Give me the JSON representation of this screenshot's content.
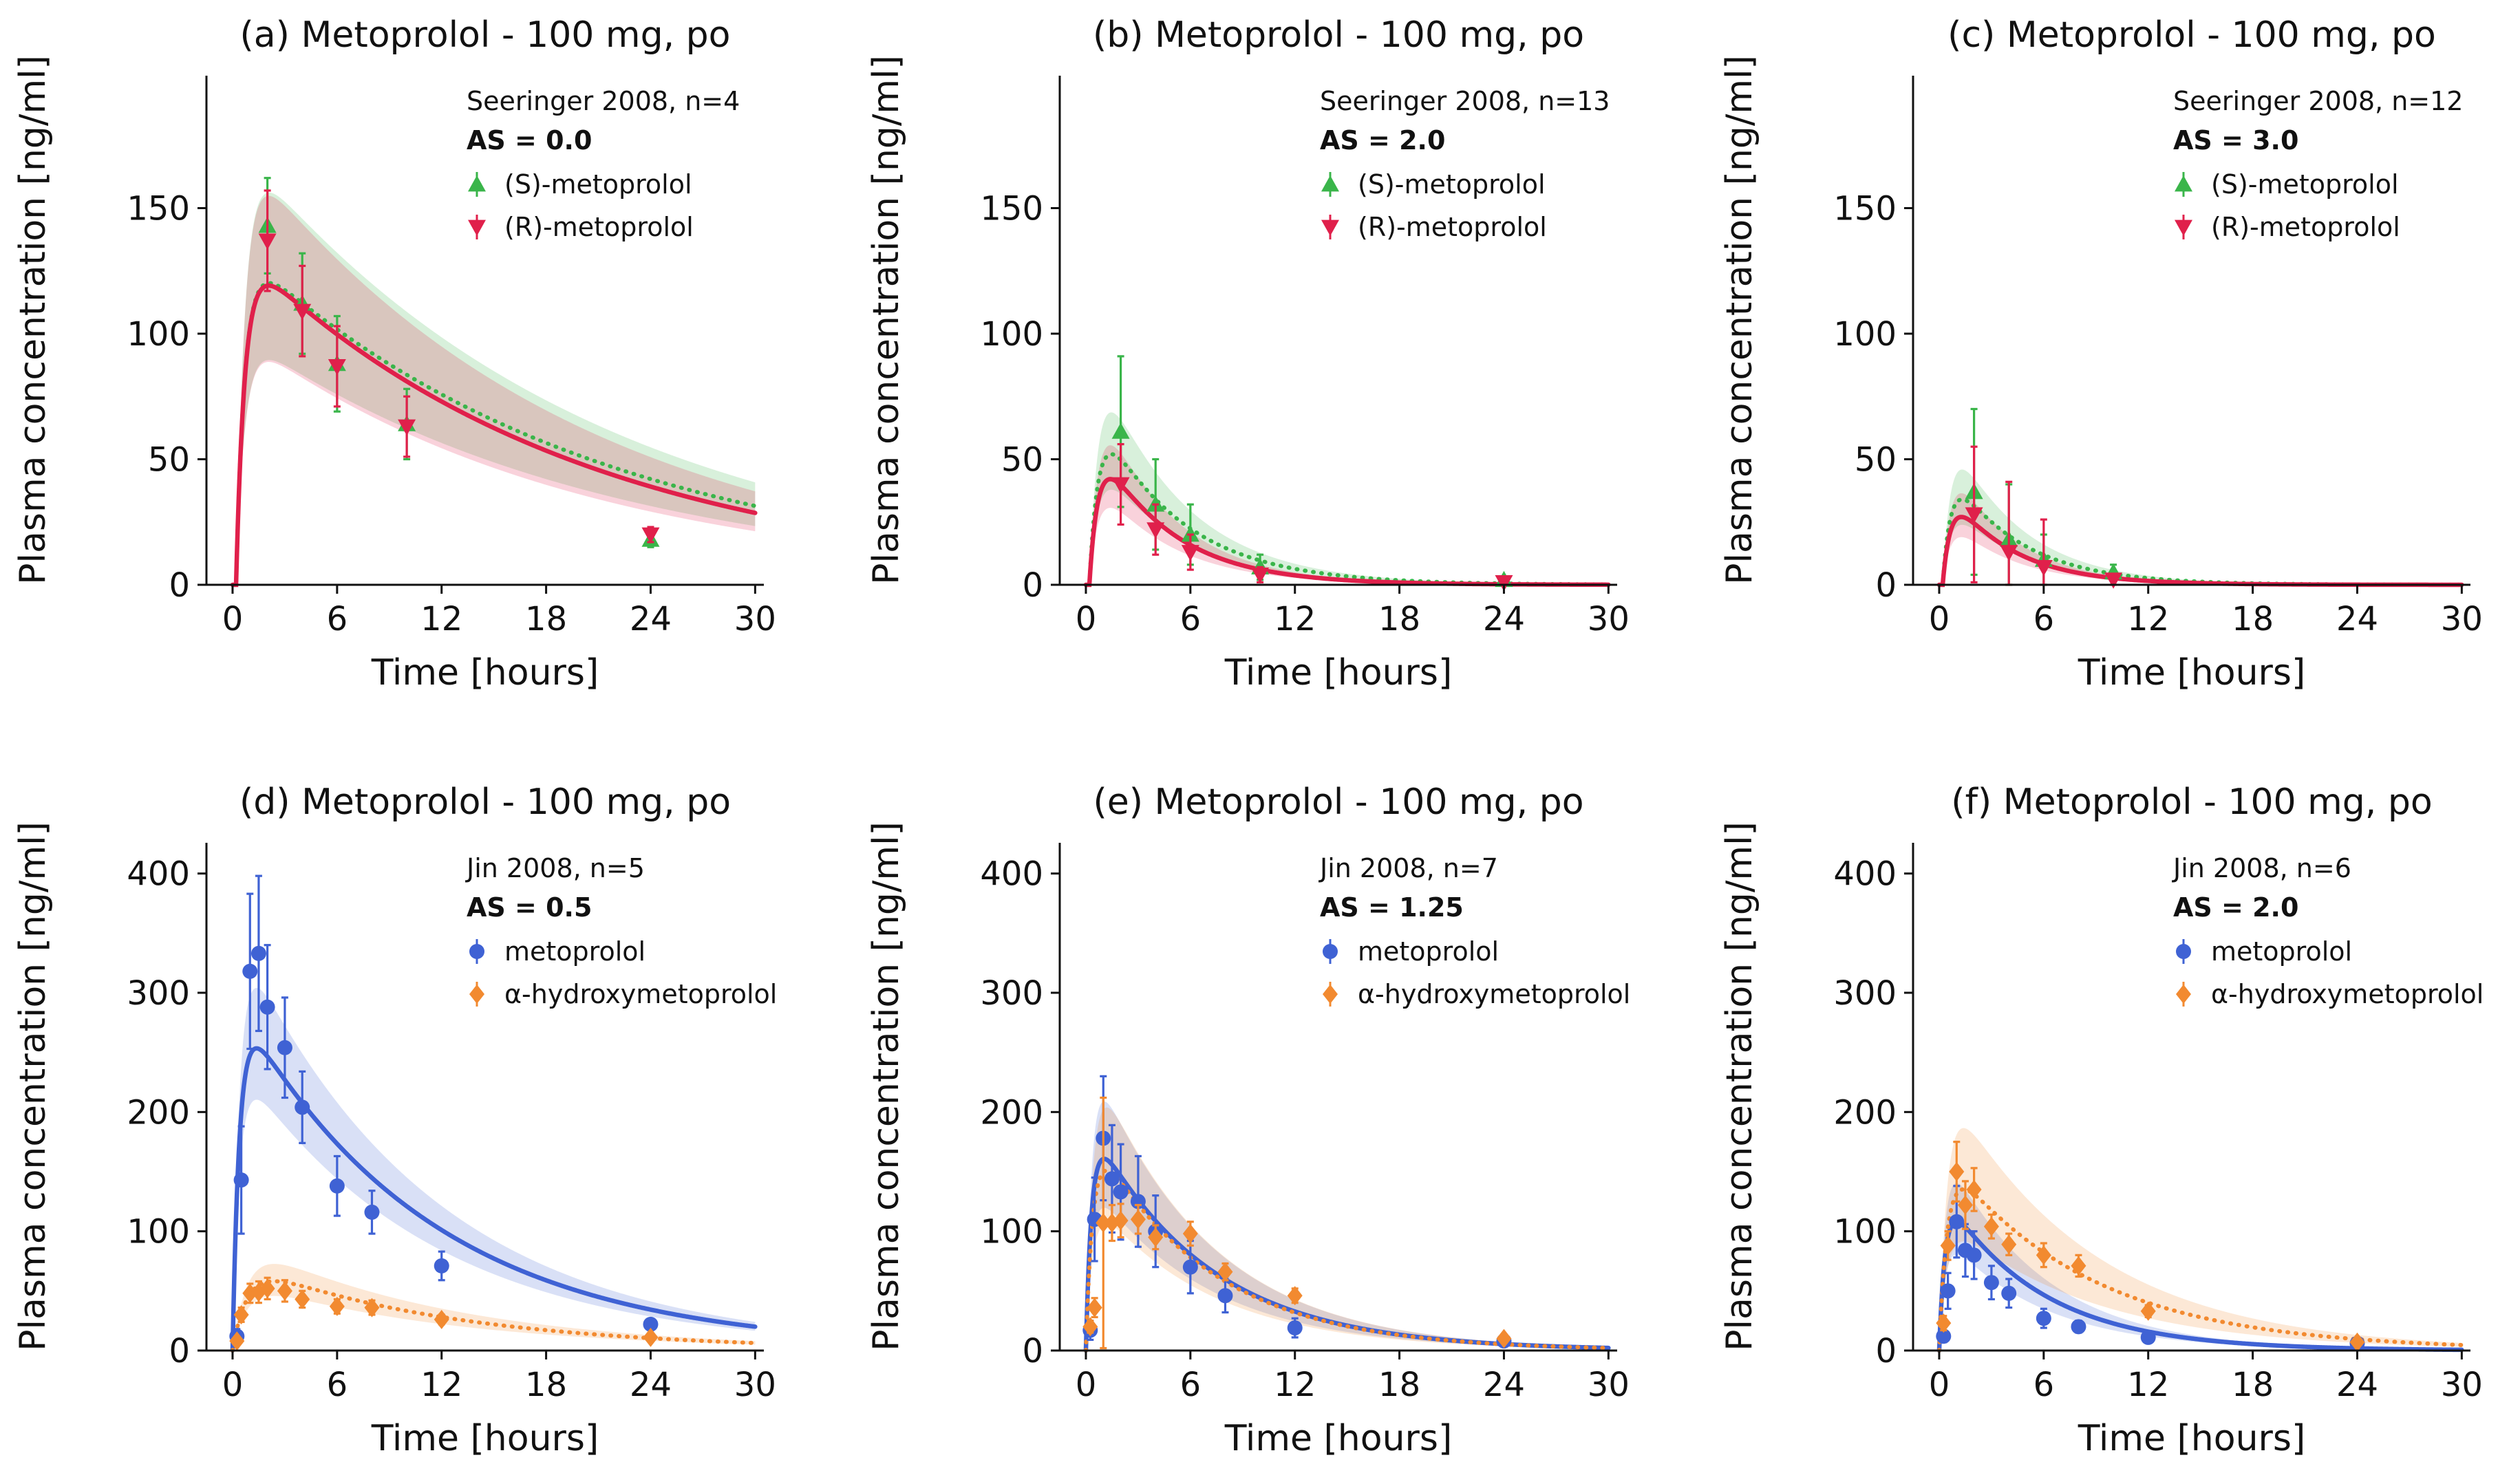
{
  "figure": {
    "shared_ylabel": "Plasma concentration [ng/ml]",
    "shared_xlabel": "Time [hours]"
  },
  "colors": {
    "S": "#3ab54a",
    "R": "#e0204b",
    "parent": "#3f62d4",
    "hydroxy": "#f28a30"
  },
  "chart_data": [
    {
      "type": "line",
      "title": "(a) Metoprolol - 100 mg, po",
      "xlabel": "Time [hours]",
      "ylabel": "Plasma concentration [ng/ml]",
      "xlim": [
        -1.5,
        30.5
      ],
      "ylim": [
        0,
        200
      ],
      "xticks": [
        0,
        6,
        12,
        18,
        24,
        30
      ],
      "yticks": [
        0,
        50,
        100,
        150
      ],
      "legend": {
        "study": "Seeringer  2008, n=4",
        "as_label": "AS = 0.0",
        "entries": [
          "(S)-metoprolol",
          "(R)-metoprolol"
        ],
        "colors": [
          "S",
          "R"
        ],
        "markers": [
          "triangle-up",
          "triangle-down"
        ]
      },
      "model": [
        {
          "name": "(S)-metoprolol",
          "color": "S",
          "dashed": true,
          "peak": 118,
          "tmax": 1.6,
          "tlag": 0.2,
          "ke": 0.049,
          "ka": 2.0,
          "band": 0.3
        },
        {
          "name": "(R)-metoprolol",
          "color": "R",
          "dashed": false,
          "peak": 116,
          "tmax": 1.5,
          "tlag": 0.2,
          "ke": 0.052,
          "ka": 2.0,
          "band": 0.3
        }
      ],
      "series": [
        {
          "name": "(S)-metoprolol",
          "color": "S",
          "marker": "triangle-up",
          "points": [
            [
              2,
              143,
              19
            ],
            [
              4,
              112,
              20
            ],
            [
              6,
              88,
              19
            ],
            [
              10,
              64,
              14
            ],
            [
              24,
              18,
              3
            ]
          ]
        },
        {
          "name": "(R)-metoprolol",
          "color": "R",
          "marker": "triangle-down",
          "points": [
            [
              2,
              137,
              20
            ],
            [
              4,
              109,
              18
            ],
            [
              6,
              87,
              16
            ],
            [
              10,
              63,
              12
            ],
            [
              24,
              20,
              3
            ]
          ]
        }
      ]
    },
    {
      "type": "line",
      "title": "(b) Metoprolol - 100 mg, po",
      "xlabel": "Time [hours]",
      "ylabel": "Plasma concentration [ng/ml]",
      "xlim": [
        -1.5,
        30.5
      ],
      "ylim": [
        0,
        200
      ],
      "xticks": [
        0,
        6,
        12,
        18,
        24,
        30
      ],
      "yticks": [
        0,
        50,
        100,
        150
      ],
      "legend": {
        "study": "Seeringer  2008, n=13",
        "as_label": "AS = 2.0",
        "entries": [
          "(S)-metoprolol",
          "(R)-metoprolol"
        ],
        "colors": [
          "S",
          "R"
        ],
        "markers": [
          "triangle-up",
          "triangle-down"
        ]
      },
      "model": [
        {
          "name": "(S)-metoprolol",
          "color": "S",
          "dashed": true,
          "peak": 52,
          "tmax": 1.5,
          "tlag": 0.2,
          "ke": 0.21,
          "ka": 2.0,
          "band": 0.32
        },
        {
          "name": "(R)-metoprolol",
          "color": "R",
          "dashed": false,
          "peak": 42,
          "tmax": 1.5,
          "tlag": 0.2,
          "ke": 0.24,
          "ka": 2.0,
          "band": 0.32
        }
      ],
      "series": [
        {
          "name": "(S)-metoprolol",
          "color": "S",
          "marker": "triangle-up",
          "points": [
            [
              2,
              61,
              30
            ],
            [
              4,
              32,
              18
            ],
            [
              6,
              20,
              12
            ],
            [
              10,
              7,
              5
            ],
            [
              24,
              2,
              1
            ]
          ]
        },
        {
          "name": "(R)-metoprolol",
          "color": "R",
          "marker": "triangle-down",
          "points": [
            [
              2,
              40,
              16
            ],
            [
              4,
              22,
              10
            ],
            [
              6,
              13,
              7
            ],
            [
              10,
              4,
              3
            ],
            [
              24,
              1,
              1
            ]
          ]
        }
      ]
    },
    {
      "type": "line",
      "title": "(c) Metoprolol - 100 mg, po",
      "xlabel": "Time [hours]",
      "ylabel": "Plasma concentration [ng/ml]",
      "xlim": [
        -1.5,
        30.5
      ],
      "ylim": [
        0,
        200
      ],
      "xticks": [
        0,
        6,
        12,
        18,
        24,
        30
      ],
      "yticks": [
        0,
        50,
        100,
        150
      ],
      "legend": {
        "study": "Seeringer  2008, n=12",
        "as_label": "AS = 3.0",
        "entries": [
          "(S)-metoprolol",
          "(R)-metoprolol"
        ],
        "colors": [
          "S",
          "R"
        ],
        "markers": [
          "triangle-up",
          "triangle-down"
        ]
      },
      "model": [
        {
          "name": "(S)-metoprolol",
          "color": "S",
          "dashed": true,
          "peak": 34,
          "tmax": 1.3,
          "tlag": 0.2,
          "ke": 0.25,
          "ka": 2.2,
          "band": 0.35
        },
        {
          "name": "(R)-metoprolol",
          "color": "R",
          "dashed": false,
          "peak": 27,
          "tmax": 1.3,
          "tlag": 0.2,
          "ke": 0.28,
          "ka": 2.2,
          "band": 0.35
        }
      ],
      "series": [
        {
          "name": "(S)-metoprolol",
          "color": "S",
          "marker": "triangle-up",
          "points": [
            [
              2,
              37,
              33
            ],
            [
              4,
              18,
              22
            ],
            [
              6,
              10,
              10
            ],
            [
              10,
              5,
              3
            ]
          ]
        },
        {
          "name": "(R)-metoprolol",
          "color": "R",
          "marker": "triangle-down",
          "points": [
            [
              2,
              28,
              27
            ],
            [
              4,
              13,
              28
            ],
            [
              6,
              7,
              19
            ],
            [
              10,
              2,
              2
            ]
          ]
        }
      ]
    },
    {
      "type": "line",
      "title": "(d) Metoprolol - 100 mg, po",
      "xlabel": "Time [hours]",
      "ylabel": "Plasma concentration [ng/ml]",
      "xlim": [
        -1.5,
        30.5
      ],
      "ylim": [
        0,
        420
      ],
      "xticks": [
        0,
        6,
        12,
        18,
        24,
        30
      ],
      "yticks": [
        0,
        100,
        200,
        300,
        400
      ],
      "legend": {
        "study": "Jin  2008, n=5",
        "as_label": "AS = 0.5",
        "entries": [
          "metoprolol",
          "α-hydroxymetoprolol"
        ],
        "colors": [
          "parent",
          "hydroxy"
        ],
        "markers": [
          "circle",
          "diamond"
        ]
      },
      "model": [
        {
          "name": "metoprolol",
          "color": "parent",
          "dashed": false,
          "peak": 253,
          "tmax": 1.5,
          "tlag": 0.0,
          "ke": 0.09,
          "ka": 2.5,
          "band": 0.2
        },
        {
          "name": "α-hydroxymetoprolol",
          "color": "hydroxy",
          "dashed": true,
          "peak": 58,
          "tmax": 2.6,
          "tlag": 0.0,
          "ke": 0.083,
          "ka": 1.2,
          "band": 0.25
        }
      ],
      "series": [
        {
          "name": "metoprolol",
          "color": "parent",
          "marker": "circle",
          "points": [
            [
              0.25,
              12,
              6
            ],
            [
              0.5,
              143,
              45
            ],
            [
              1,
              318,
              65
            ],
            [
              1.5,
              333,
              65
            ],
            [
              2,
              288,
              52
            ],
            [
              3,
              254,
              42
            ],
            [
              4,
              204,
              30
            ],
            [
              6,
              138,
              25
            ],
            [
              8,
              116,
              18
            ],
            [
              12,
              71,
              12
            ],
            [
              24,
              22,
              4
            ]
          ]
        },
        {
          "name": "α-hydroxymetoprolol",
          "color": "hydroxy",
          "marker": "diamond",
          "points": [
            [
              0.25,
              8,
              3
            ],
            [
              0.5,
              30,
              6
            ],
            [
              1,
              48,
              8
            ],
            [
              1.5,
              49,
              9
            ],
            [
              2,
              52,
              9
            ],
            [
              3,
              50,
              9
            ],
            [
              4,
              43,
              7
            ],
            [
              6,
              37,
              6
            ],
            [
              8,
              36,
              6
            ],
            [
              12,
              26,
              4
            ],
            [
              24,
              11,
              2
            ]
          ]
        }
      ]
    },
    {
      "type": "line",
      "title": "(e) Metoprolol - 100 mg, po",
      "xlabel": "Time [hours]",
      "ylabel": "Plasma concentration [ng/ml]",
      "xlim": [
        -1.5,
        30.5
      ],
      "ylim": [
        0,
        420
      ],
      "xticks": [
        0,
        6,
        12,
        18,
        24,
        30
      ],
      "yticks": [
        0,
        100,
        200,
        300,
        400
      ],
      "legend": {
        "study": "Jin  2008, n=7",
        "as_label": "AS = 1.25",
        "entries": [
          "metoprolol",
          "α-hydroxymetoprolol"
        ],
        "colors": [
          "parent",
          "hydroxy"
        ],
        "markers": [
          "circle",
          "diamond"
        ]
      },
      "model": [
        {
          "name": "metoprolol",
          "color": "parent",
          "dashed": false,
          "peak": 160,
          "tmax": 1.2,
          "tlag": 0.0,
          "ke": 0.15,
          "ka": 3.0,
          "band": 0.3
        },
        {
          "name": "α-hydroxymetoprolol",
          "color": "hydroxy",
          "dashed": true,
          "peak": 150,
          "tmax": 1.4,
          "tlag": 0.0,
          "ke": 0.15,
          "ka": 2.5,
          "band": 0.35
        }
      ],
      "series": [
        {
          "name": "metoprolol",
          "color": "parent",
          "marker": "circle",
          "points": [
            [
              0.25,
              17,
              8
            ],
            [
              0.5,
              110,
              35
            ],
            [
              1,
              178,
              52
            ],
            [
              1.5,
              144,
              45
            ],
            [
              2,
              133,
              40
            ],
            [
              3,
              125,
              38
            ],
            [
              4,
              100,
              30
            ],
            [
              6,
              70,
              22
            ],
            [
              8,
              46,
              14
            ],
            [
              12,
              19,
              8
            ],
            [
              24,
              8,
              3
            ]
          ]
        },
        {
          "name": "α-hydroxymetoprolol",
          "color": "hydroxy",
          "marker": "diamond",
          "points": [
            [
              0.25,
              20,
              5
            ],
            [
              0.5,
              36,
              8
            ],
            [
              1,
              107,
              105
            ],
            [
              1.5,
              107,
              15
            ],
            [
              2,
              109,
              14
            ],
            [
              3,
              110,
              12
            ],
            [
              4,
              95,
              10
            ],
            [
              6,
              98,
              10
            ],
            [
              8,
              66,
              7
            ],
            [
              12,
              46,
              6
            ],
            [
              24,
              10,
              2
            ]
          ]
        }
      ]
    },
    {
      "type": "line",
      "title": "(f) Metoprolol - 100 mg, po",
      "xlabel": "Time [hours]",
      "ylabel": "Plasma concentration [ng/ml]",
      "xlim": [
        -1.5,
        30.5
      ],
      "ylim": [
        0,
        420
      ],
      "xticks": [
        0,
        6,
        12,
        18,
        24,
        30
      ],
      "yticks": [
        0,
        100,
        200,
        300,
        400
      ],
      "legend": {
        "study": "Jin  2008, n=6",
        "as_label": "AS = 2.0",
        "entries": [
          "metoprolol",
          "α-hydroxymetoprolol"
        ],
        "colors": [
          "parent",
          "hydroxy"
        ],
        "markers": [
          "circle",
          "diamond"
        ]
      },
      "model": [
        {
          "name": "metoprolol",
          "color": "parent",
          "dashed": false,
          "peak": 108,
          "tmax": 1.0,
          "tlag": 0.0,
          "ke": 0.18,
          "ka": 3.0,
          "band": 0.3
        },
        {
          "name": "α-hydroxymetoprolol",
          "color": "hydroxy",
          "dashed": true,
          "peak": 135,
          "tmax": 1.5,
          "tlag": 0.0,
          "ke": 0.12,
          "ka": 2.2,
          "band": 0.38
        }
      ],
      "series": [
        {
          "name": "metoprolol",
          "color": "parent",
          "marker": "circle",
          "points": [
            [
              0.25,
              12,
              5
            ],
            [
              0.5,
              50,
              15
            ],
            [
              1,
              108,
              30
            ],
            [
              1.5,
              84,
              22
            ],
            [
              2,
              80,
              20
            ],
            [
              3,
              57,
              14
            ],
            [
              4,
              48,
              12
            ],
            [
              6,
              27,
              8
            ],
            [
              8,
              20,
              5
            ],
            [
              12,
              11,
              3
            ],
            [
              24,
              6,
              2
            ]
          ]
        },
        {
          "name": "α-hydroxymetoprolol",
          "color": "hydroxy",
          "marker": "diamond",
          "points": [
            [
              0.25,
              23,
              6
            ],
            [
              0.5,
              88,
              12
            ],
            [
              1,
              150,
              25
            ],
            [
              1.5,
              122,
              20
            ],
            [
              2,
              135,
              18
            ],
            [
              3,
              104,
              10
            ],
            [
              4,
              89,
              9
            ],
            [
              6,
              80,
              10
            ],
            [
              8,
              71,
              9
            ],
            [
              12,
              33,
              5
            ],
            [
              24,
              7,
              2
            ]
          ]
        }
      ]
    }
  ]
}
